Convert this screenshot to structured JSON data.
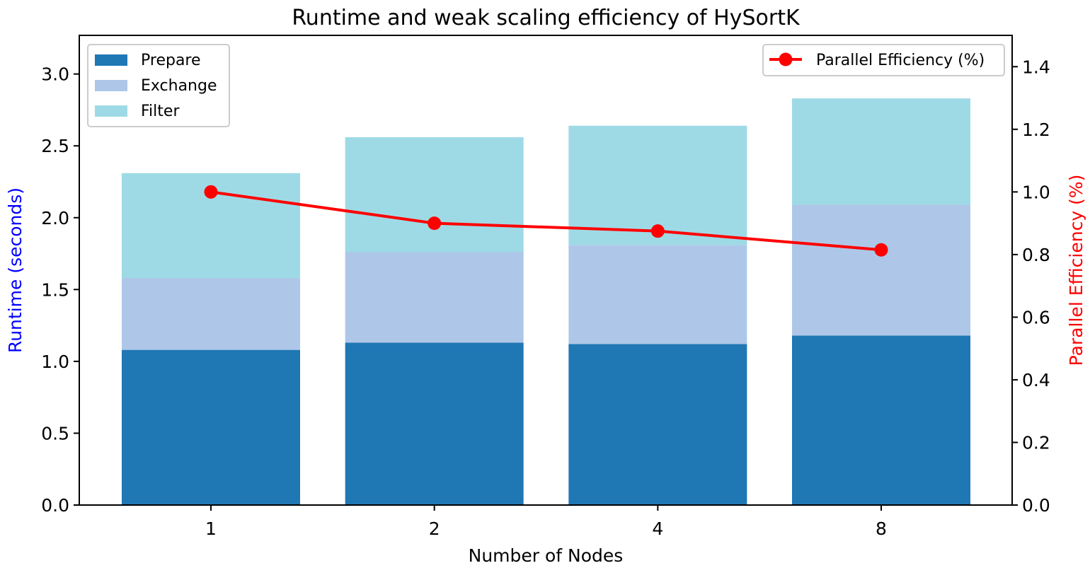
{
  "chart_data": {
    "type": "bar",
    "title": "Runtime and weak scaling efficiency of HySortK",
    "xlabel": "Number of Nodes",
    "ylabel": "Runtime (seconds)",
    "y2label": "Parallel Efficiency (%)",
    "categories": [
      "1",
      "2",
      "4",
      "8"
    ],
    "stacked": true,
    "series": [
      {
        "name": "Prepare",
        "color": "#1f77b4",
        "values": [
          1.08,
          1.13,
          1.12,
          1.18
        ]
      },
      {
        "name": "Exchange",
        "color": "#aec7e8",
        "values": [
          0.5,
          0.63,
          0.69,
          0.91
        ]
      },
      {
        "name": "Filter",
        "color": "#9edae5",
        "values": [
          0.73,
          0.8,
          0.83,
          0.74
        ]
      }
    ],
    "line_series": {
      "name": "Parallel Efficiency (%)",
      "color": "#ff0000",
      "axis": "right",
      "values": [
        1.0,
        0.9,
        0.875,
        0.815
      ]
    },
    "ylim": [
      0,
      3.2
    ],
    "y2lim": [
      0,
      1.5
    ],
    "yticks": [
      "0.0",
      "0.5",
      "1.0",
      "1.5",
      "2.0",
      "2.5",
      "3.0"
    ],
    "y2ticks": [
      "0.0",
      "0.2",
      "0.4",
      "0.6",
      "0.8",
      "1.0",
      "1.2",
      "1.4"
    ],
    "ylabel_color": "#0000ff",
    "y2label_color": "#ff0000",
    "legend_bars_position": "upper-left",
    "legend_line_position": "upper-right",
    "grid": false
  }
}
